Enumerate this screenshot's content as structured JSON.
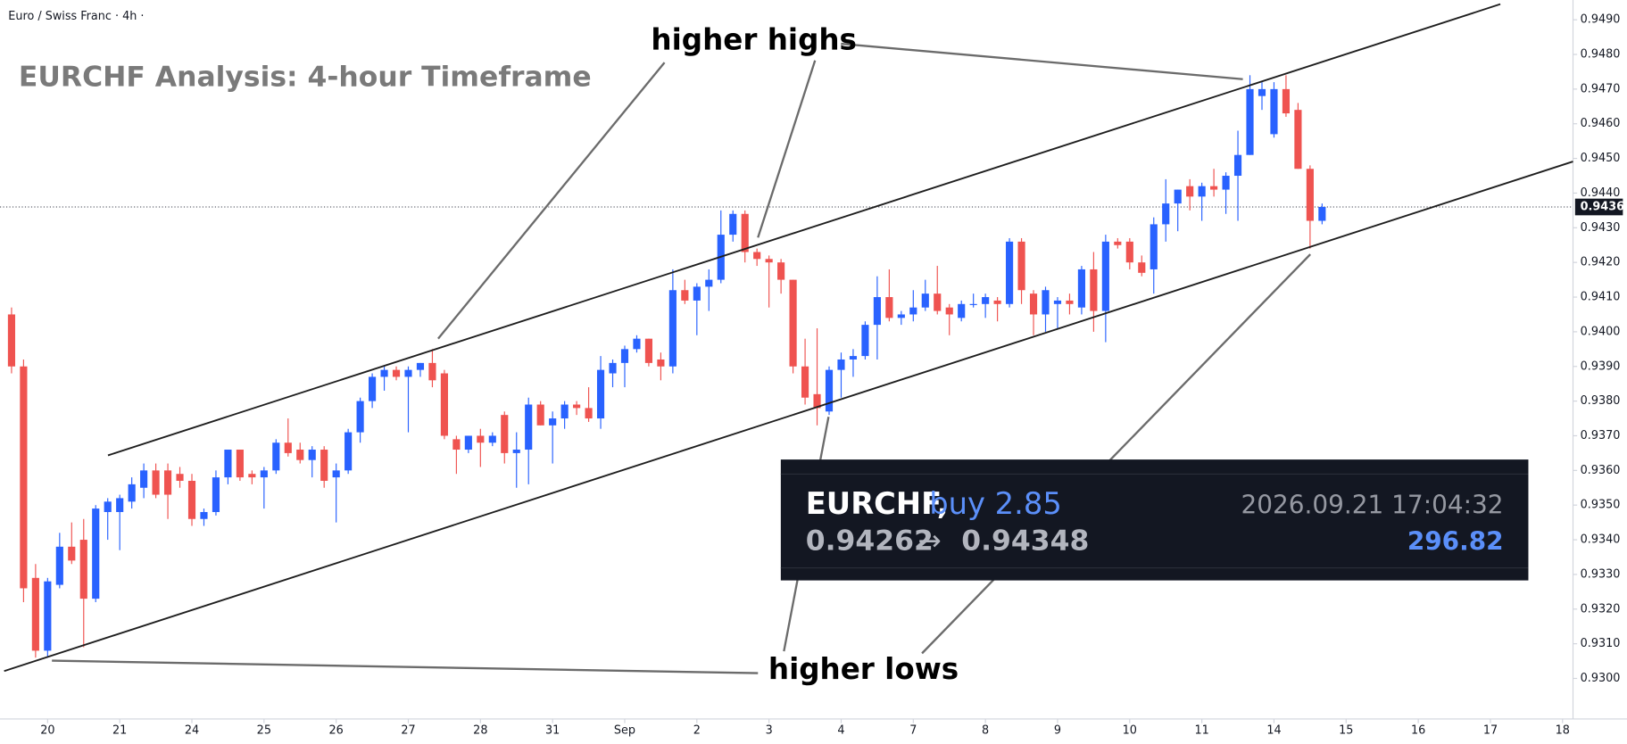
{
  "chart_data": {
    "type": "candlestick",
    "header": "Euro / Swiss Franc · 4h ·",
    "title": "EURCHF Analysis: 4-hour Timeframe",
    "annotations": [
      "higher highs",
      "higher lows"
    ],
    "up_color": "#2962ff",
    "down_color": "#ef5350",
    "x": [
      1,
      2,
      3,
      4,
      5,
      6,
      7,
      8,
      9,
      10,
      11,
      12,
      13,
      14,
      15,
      16,
      17,
      18,
      19,
      20,
      21,
      22,
      23,
      24,
      25,
      26,
      27,
      28,
      29,
      30,
      31,
      32,
      33,
      34,
      35,
      36,
      37,
      38,
      39,
      40,
      41,
      42,
      43,
      44,
      45,
      46,
      47,
      48,
      49,
      50,
      51,
      52,
      53,
      54,
      55,
      56,
      57,
      58,
      59,
      60,
      61,
      62,
      63,
      64,
      65,
      66,
      67,
      68,
      69,
      70,
      71,
      72,
      73,
      74,
      75,
      76,
      77,
      78,
      79,
      80,
      81,
      82,
      83,
      84,
      85,
      86,
      87,
      88,
      89,
      90,
      91,
      92,
      93,
      94,
      95,
      96,
      97,
      98,
      99,
      100,
      101,
      102,
      103,
      104,
      105,
      106,
      107,
      108,
      109,
      110
    ],
    "open": [
      0.9405,
      0.939,
      0.9329,
      0.9308,
      0.9327,
      0.9338,
      0.934,
      0.9323,
      0.9348,
      0.9348,
      0.9351,
      0.9355,
      0.936,
      0.936,
      0.9359,
      0.9357,
      0.9346,
      0.9348,
      0.9358,
      0.9366,
      0.9359,
      0.9358,
      0.936,
      0.9368,
      0.9366,
      0.9363,
      0.9366,
      0.9358,
      0.936,
      0.9371,
      0.938,
      0.9387,
      0.9389,
      0.9387,
      0.9389,
      0.9391,
      0.9388,
      0.9369,
      0.9366,
      0.937,
      0.9368,
      0.9376,
      0.9365,
      0.9366,
      0.9379,
      0.9373,
      0.9375,
      0.9379,
      0.9378,
      0.9375,
      0.9388,
      0.9391,
      0.9395,
      0.9398,
      0.9392,
      0.939,
      0.9412,
      0.9409,
      0.9413,
      0.9415,
      0.9428,
      0.9434,
      0.9423,
      0.9421,
      0.942,
      0.9415,
      0.939,
      0.9382,
      0.9377,
      0.9389,
      0.9392,
      0.9393,
      0.9402,
      0.941,
      0.9404,
      0.9405,
      0.9407,
      0.9411,
      0.9407,
      0.9404,
      0.9408,
      0.9408,
      0.9409,
      0.9408,
      0.9426,
      0.9411,
      0.9405,
      0.9408,
      0.9409,
      0.9407,
      0.9418,
      0.9406,
      0.9426,
      0.9426,
      0.942,
      0.9418,
      0.9431,
      0.9437,
      0.9442,
      0.9439,
      0.9442,
      0.9441,
      0.9445,
      0.9451,
      0.9468,
      0.9457,
      0.947,
      0.9464,
      0.9447,
      0.9432
    ],
    "high": [
      0.9407,
      0.9392,
      0.9333,
      0.9329,
      0.9342,
      0.9345,
      0.9346,
      0.935,
      0.9352,
      0.9353,
      0.9358,
      0.9362,
      0.9362,
      0.9362,
      0.9361,
      0.9359,
      0.9349,
      0.936,
      0.9366,
      0.9366,
      0.936,
      0.9361,
      0.9369,
      0.9375,
      0.9368,
      0.9367,
      0.9367,
      0.9362,
      0.9372,
      0.9381,
      0.9388,
      0.939,
      0.939,
      0.939,
      0.9391,
      0.9395,
      0.9389,
      0.937,
      0.937,
      0.9372,
      0.9371,
      0.9377,
      0.9371,
      0.9381,
      0.938,
      0.9377,
      0.938,
      0.938,
      0.9384,
      0.9393,
      0.9392,
      0.9396,
      0.9399,
      0.9398,
      0.9394,
      0.9418,
      0.9415,
      0.9414,
      0.9418,
      0.9435,
      0.9435,
      0.9435,
      0.9424,
      0.9422,
      0.9421,
      0.9415,
      0.9398,
      0.9401,
      0.939,
      0.9394,
      0.9395,
      0.9403,
      0.9416,
      0.9418,
      0.9406,
      0.9412,
      0.9415,
      0.9419,
      0.9408,
      0.9409,
      0.9411,
      0.9411,
      0.941,
      0.9427,
      0.9427,
      0.9412,
      0.9413,
      0.941,
      0.9411,
      0.9419,
      0.9423,
      0.9428,
      0.9427,
      0.9427,
      0.9422,
      0.9433,
      0.9444,
      0.9441,
      0.9444,
      0.9443,
      0.9447,
      0.9446,
      0.9458,
      0.9474,
      0.9472,
      0.9472,
      0.9474,
      0.9466,
      0.9448,
      0.9437
    ],
    "low": [
      0.9388,
      0.9322,
      0.9306,
      0.9306,
      0.9326,
      0.9333,
      0.9309,
      0.9322,
      0.934,
      0.9337,
      0.9349,
      0.9352,
      0.9352,
      0.9346,
      0.9355,
      0.9344,
      0.9344,
      0.9347,
      0.9356,
      0.9357,
      0.9356,
      0.9349,
      0.9359,
      0.9364,
      0.9362,
      0.9358,
      0.9355,
      0.9345,
      0.9359,
      0.9368,
      0.9378,
      0.9383,
      0.9386,
      0.9371,
      0.9387,
      0.9384,
      0.9369,
      0.9359,
      0.9365,
      0.9361,
      0.9367,
      0.9362,
      0.9355,
      0.9356,
      0.9373,
      0.9362,
      0.9372,
      0.9376,
      0.9374,
      0.9372,
      0.9384,
      0.9384,
      0.9394,
      0.939,
      0.9386,
      0.9388,
      0.9408,
      0.9399,
      0.9406,
      0.9414,
      0.9426,
      0.942,
      0.9419,
      0.9407,
      0.9411,
      0.9388,
      0.9379,
      0.9373,
      0.9376,
      0.9381,
      0.9387,
      0.9392,
      0.9392,
      0.9403,
      0.9402,
      0.9403,
      0.9406,
      0.9405,
      0.9399,
      0.9403,
      0.9407,
      0.9404,
      0.9403,
      0.9407,
      0.9408,
      0.9399,
      0.94,
      0.9401,
      0.9405,
      0.9405,
      0.94,
      0.9397,
      0.9424,
      0.9418,
      0.9416,
      0.9411,
      0.9426,
      0.9429,
      0.9435,
      0.9432,
      0.9439,
      0.9434,
      0.9432,
      0.9451,
      0.9464,
      0.9456,
      0.9462,
      0.9447,
      0.9424,
      0.9431
    ],
    "close": [
      0.939,
      0.9326,
      0.9308,
      0.9328,
      0.9338,
      0.9334,
      0.9323,
      0.9349,
      0.9351,
      0.9352,
      0.9356,
      0.936,
      0.9353,
      0.9353,
      0.9357,
      0.9346,
      0.9348,
      0.9358,
      0.9366,
      0.9358,
      0.9358,
      0.936,
      0.9368,
      0.9365,
      0.9363,
      0.9366,
      0.9357,
      0.936,
      0.9371,
      0.938,
      0.9387,
      0.9389,
      0.9387,
      0.9389,
      0.9391,
      0.9386,
      0.937,
      0.9366,
      0.937,
      0.9368,
      0.937,
      0.9365,
      0.9366,
      0.9379,
      0.9373,
      0.9375,
      0.9379,
      0.9378,
      0.9375,
      0.9389,
      0.9391,
      0.9395,
      0.9398,
      0.9391,
      0.939,
      0.9412,
      0.9409,
      0.9413,
      0.9415,
      0.9428,
      0.9434,
      0.9423,
      0.9421,
      0.942,
      0.9415,
      0.939,
      0.9381,
      0.9378,
      0.9389,
      0.9392,
      0.9393,
      0.9402,
      0.941,
      0.9404,
      0.9405,
      0.9407,
      0.9411,
      0.9406,
      0.9405,
      0.9408,
      0.9408,
      0.941,
      0.9408,
      0.9426,
      0.9412,
      0.9405,
      0.9412,
      0.9409,
      0.9408,
      0.9418,
      0.9406,
      0.9426,
      0.9425,
      0.942,
      0.9417,
      0.9431,
      0.9437,
      0.9441,
      0.9439,
      0.9442,
      0.9441,
      0.9445,
      0.9451,
      0.947,
      0.947,
      0.947,
      0.9463,
      0.9447,
      0.9432,
      0.9436
    ],
    "last_price": 0.9436,
    "xlim": [
      0.04,
      130.87
    ],
    "ylim": [
      0.92883,
      0.94957
    ],
    "xticks": [
      {
        "value": 4,
        "label": "20"
      },
      {
        "value": 10,
        "label": "21"
      },
      {
        "value": 16,
        "label": "24"
      },
      {
        "value": 22,
        "label": "25"
      },
      {
        "value": 28,
        "label": "26"
      },
      {
        "value": 34,
        "label": "27"
      },
      {
        "value": 40,
        "label": "28"
      },
      {
        "value": 46,
        "label": "31"
      },
      {
        "value": 52,
        "label": "Sep"
      },
      {
        "value": 58,
        "label": "2"
      },
      {
        "value": 64,
        "label": "3"
      },
      {
        "value": 70,
        "label": "4"
      },
      {
        "value": 76,
        "label": "7"
      },
      {
        "value": 82,
        "label": "8"
      },
      {
        "value": 88,
        "label": "9"
      },
      {
        "value": 94,
        "label": "10"
      },
      {
        "value": 100,
        "label": "11"
      },
      {
        "value": 106,
        "label": "14"
      },
      {
        "value": 112,
        "label": "15"
      },
      {
        "value": 118,
        "label": "16"
      },
      {
        "value": 124,
        "label": "17"
      },
      {
        "value": 130,
        "label": "18"
      }
    ],
    "yticks": [
      {
        "value": 0.93,
        "label": "0.9300"
      },
      {
        "value": 0.931,
        "label": "0.9310"
      },
      {
        "value": 0.932,
        "label": "0.9320"
      },
      {
        "value": 0.933,
        "label": "0.9330"
      },
      {
        "value": 0.934,
        "label": "0.9340"
      },
      {
        "value": 0.935,
        "label": "0.9350"
      },
      {
        "value": 0.936,
        "label": "0.9360"
      },
      {
        "value": 0.937,
        "label": "0.9370"
      },
      {
        "value": 0.938,
        "label": "0.9380"
      },
      {
        "value": 0.939,
        "label": "0.9390"
      },
      {
        "value": 0.94,
        "label": "0.9400"
      },
      {
        "value": 0.941,
        "label": "0.9410"
      },
      {
        "value": 0.942,
        "label": "0.9420"
      },
      {
        "value": 0.943,
        "label": "0.9430"
      },
      {
        "value": 0.944,
        "label": "0.9440"
      },
      {
        "value": 0.945,
        "label": "0.9450"
      },
      {
        "value": 0.946,
        "label": "0.9460"
      },
      {
        "value": 0.947,
        "label": "0.9470"
      },
      {
        "value": 0.948,
        "label": "0.9480"
      },
      {
        "value": 0.949,
        "label": "0.9490"
      }
    ]
  },
  "trade": {
    "symbol": "EURCHF,",
    "side": "buy 2.85",
    "entry": "0.94262",
    "exit": "0.94348",
    "time": "2026.09.21 17:04:32",
    "profit": "296.82"
  }
}
